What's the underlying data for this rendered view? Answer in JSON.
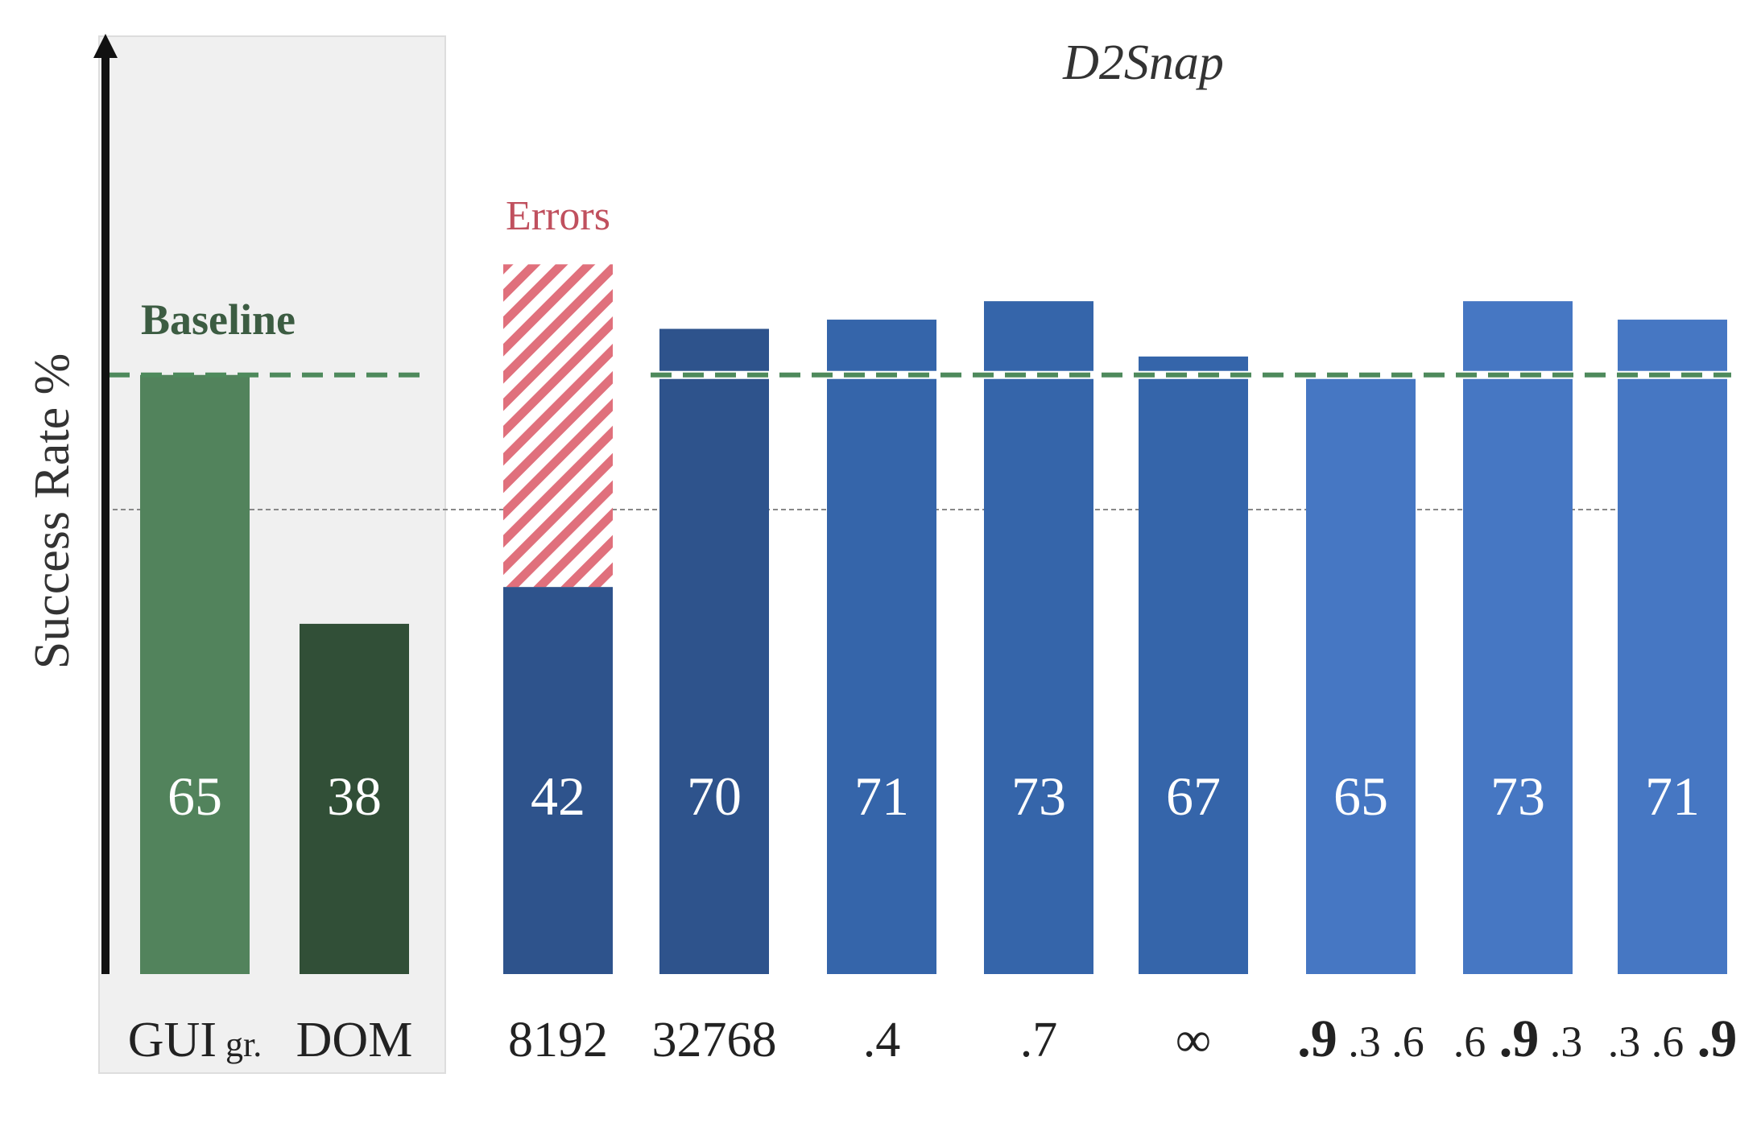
{
  "chart_data": {
    "type": "bar",
    "title": "D2Snap",
    "ylabel": "Success Rate %",
    "ylim": [
      0,
      100
    ],
    "grid": false,
    "annotations": {
      "baseline_label": "Baseline",
      "errors_label": "Errors"
    },
    "baseline_value": 65,
    "midline_value": 50,
    "colors": {
      "gui": "#52835C",
      "dom": "#314F37",
      "d2snap_dark": "#2E538C",
      "d2snap_mid": "#3565AA",
      "d2snap_light": "#4677C3",
      "errors": "#E0707C",
      "baseline_line": "#4E8A5C",
      "group_bg": "#F0F0F0",
      "baseline_text": "#3C5C42",
      "errors_text": "#C0505E"
    },
    "bars": [
      {
        "label": "GUI",
        "sub": "gr.",
        "value": 65,
        "color_key": "gui"
      },
      {
        "label": "DOM",
        "value": 38,
        "color_key": "dom"
      },
      {
        "label": "8192",
        "value": 42,
        "errors": 35,
        "color_key": "d2snap_dark"
      },
      {
        "label": "32768",
        "value": 70,
        "color_key": "d2snap_dark"
      },
      {
        "label": ".4",
        "value": 71,
        "color_key": "d2snap_mid"
      },
      {
        "label": ".7",
        "value": 73,
        "color_key": "d2snap_mid"
      },
      {
        "label": "∞",
        "value": 67,
        "color_key": "d2snap_mid"
      },
      {
        "label_parts": [
          ".9",
          ".3",
          ".6"
        ],
        "bold_index": 0,
        "value": 65,
        "color_key": "d2snap_light"
      },
      {
        "label_parts": [
          ".6",
          ".9",
          ".3"
        ],
        "bold_index": 1,
        "value": 73,
        "color_key": "d2snap_light"
      },
      {
        "label_parts": [
          ".3",
          ".6",
          ".9"
        ],
        "bold_index": 2,
        "value": 71,
        "color_key": "d2snap_light"
      }
    ]
  }
}
